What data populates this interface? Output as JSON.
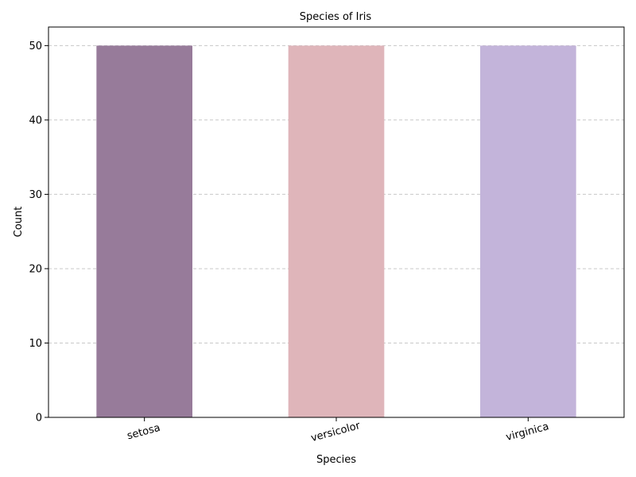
{
  "chart_data": {
    "type": "bar",
    "title": "Species of Iris",
    "xlabel": "Species",
    "ylabel": "Count",
    "categories": [
      "setosa",
      "versicolor",
      "virginica"
    ],
    "values": [
      50,
      50,
      50
    ],
    "bar_colors": [
      "#977b9a",
      "#dfb5ba",
      "#c3b4da"
    ],
    "ylim": [
      0,
      52.5
    ],
    "yticks": [
      0,
      10,
      20,
      30,
      40,
      50
    ],
    "grid": {
      "axis": "y",
      "style": "dashed",
      "color": "#c8c8c8"
    },
    "xtick_rotation": "rotated"
  }
}
